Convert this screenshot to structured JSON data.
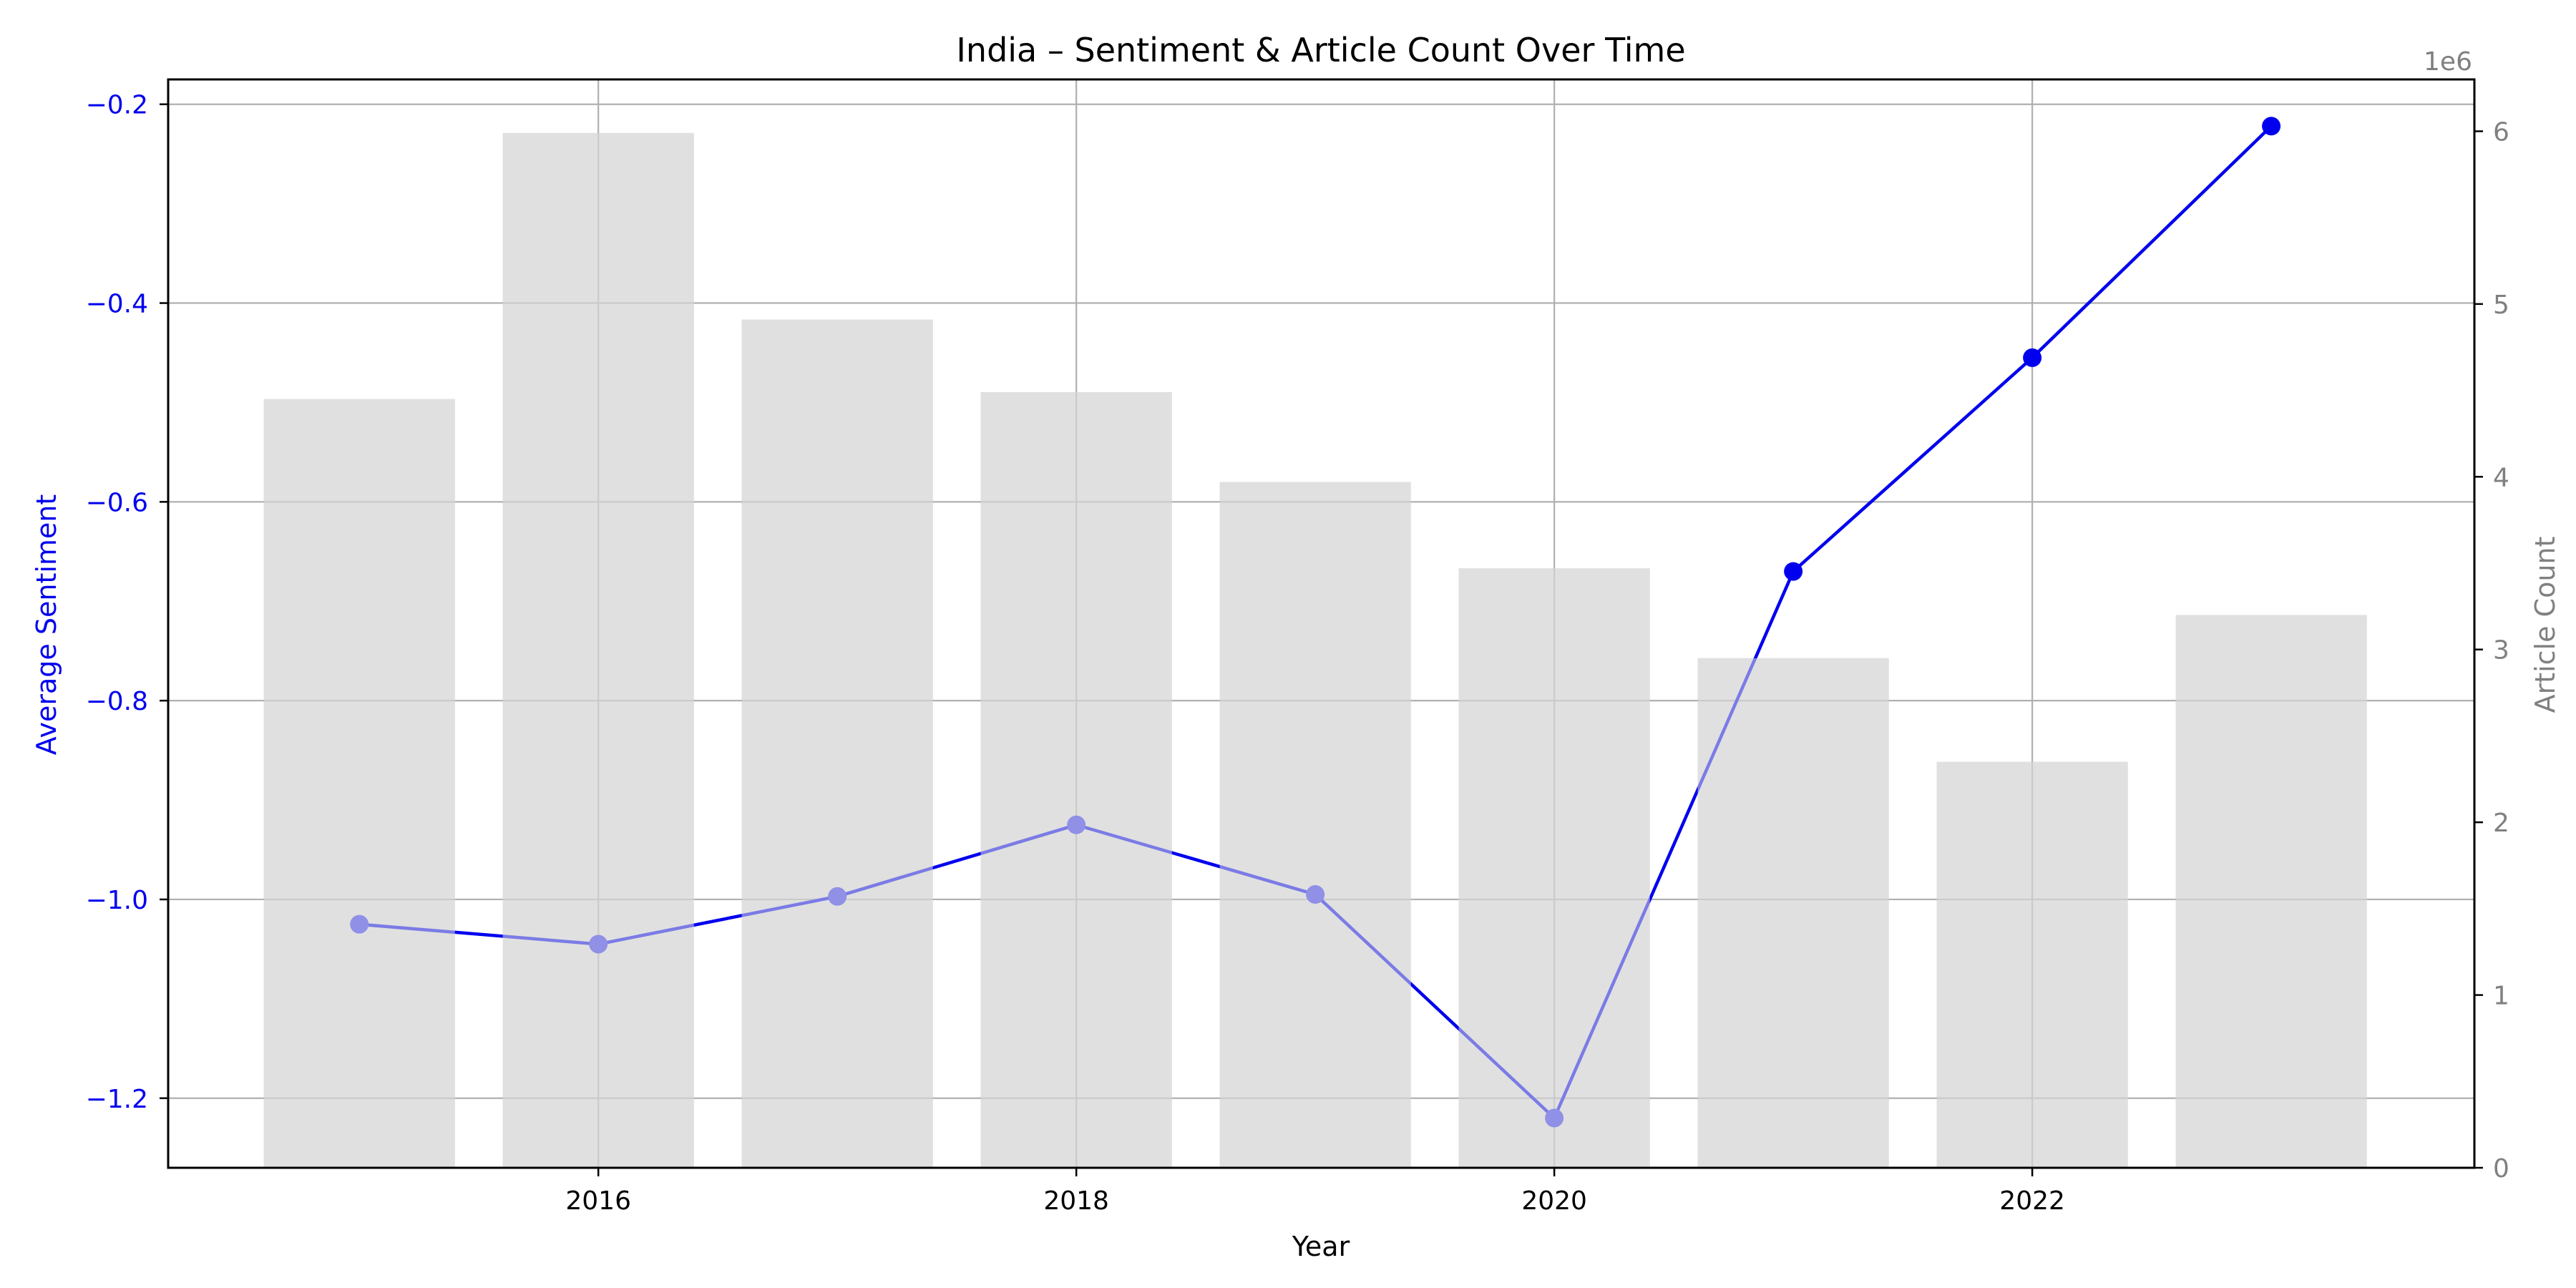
{
  "chart_data": {
    "type": "bar",
    "title": "India – Sentiment & Article Count Over Time",
    "xlabel": "Year",
    "ylabel_left": "Average Sentiment",
    "ylabel_right": "Article Count",
    "right_axis_multiplier": "1e6",
    "x_ticks": [
      "2016",
      "2018",
      "2020",
      "2022"
    ],
    "left_ticks": [
      "−1.2",
      "−1.0",
      "−0.8",
      "−0.6",
      "−0.4",
      "−0.2"
    ],
    "right_ticks": [
      "0",
      "1",
      "2",
      "3",
      "4",
      "5",
      "6"
    ],
    "xlim": [
      2014.2,
      2023.85
    ],
    "ylim_left": [
      -1.27,
      -0.175
    ],
    "ylim_right": [
      0,
      6.3
    ],
    "grid": true,
    "years": [
      2015,
      2016,
      2017,
      2018,
      2019,
      2020,
      2021,
      2022,
      2023
    ],
    "series": [
      {
        "name": "Article Count",
        "kind": "bar",
        "color": "#e0e0e0",
        "values": [
          4450000,
          5990000,
          4910000,
          4490000,
          3970000,
          3470000,
          2950000,
          2350000,
          3200000
        ]
      },
      {
        "name": "Average Sentiment",
        "kind": "line",
        "color": "#0000ee",
        "values": [
          -1.025,
          -1.045,
          -0.997,
          -0.925,
          -0.995,
          -1.22,
          -0.67,
          -0.455,
          -0.222
        ]
      }
    ]
  }
}
